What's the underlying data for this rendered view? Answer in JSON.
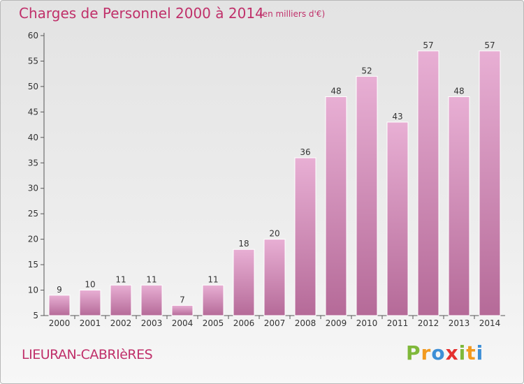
{
  "header": {
    "title": "Charges de Personnel 2000 à 2014",
    "subtitle": "(en milliers d'€)"
  },
  "footer": {
    "commune": "LIEURAN-CABRIèRES",
    "logo_letters": [
      "P",
      "r",
      "o",
      "x",
      "i",
      "t",
      "i"
    ],
    "logo_colors": [
      "#7fb83a",
      "#f29a1f",
      "#3d8fd6",
      "#e5302f",
      "#7fb83a",
      "#f29a1f",
      "#3d8fd6"
    ]
  },
  "colors": {
    "accent": "#c0306a",
    "bar_top": "#e8afd4",
    "bar_bottom": "#b56a98",
    "axis": "#555555",
    "grid": "#cfcfcf"
  },
  "chart_data": {
    "type": "bar",
    "title": "Charges de Personnel 2000 à 2014",
    "subtitle": "(en milliers d'€)",
    "categories": [
      "2000",
      "2001",
      "2002",
      "2003",
      "2004",
      "2005",
      "2006",
      "2007",
      "2008",
      "2009",
      "2010",
      "2011",
      "2012",
      "2013",
      "2014"
    ],
    "values": [
      9,
      10,
      11,
      11,
      7,
      11,
      18,
      20,
      36,
      48,
      52,
      43,
      57,
      48,
      57
    ],
    "ylim": [
      5,
      60
    ],
    "yticks": [
      5,
      10,
      15,
      20,
      25,
      30,
      35,
      40,
      45,
      50,
      55,
      60
    ],
    "xlabel": "",
    "ylabel": "",
    "grid": false,
    "legend": "none"
  }
}
